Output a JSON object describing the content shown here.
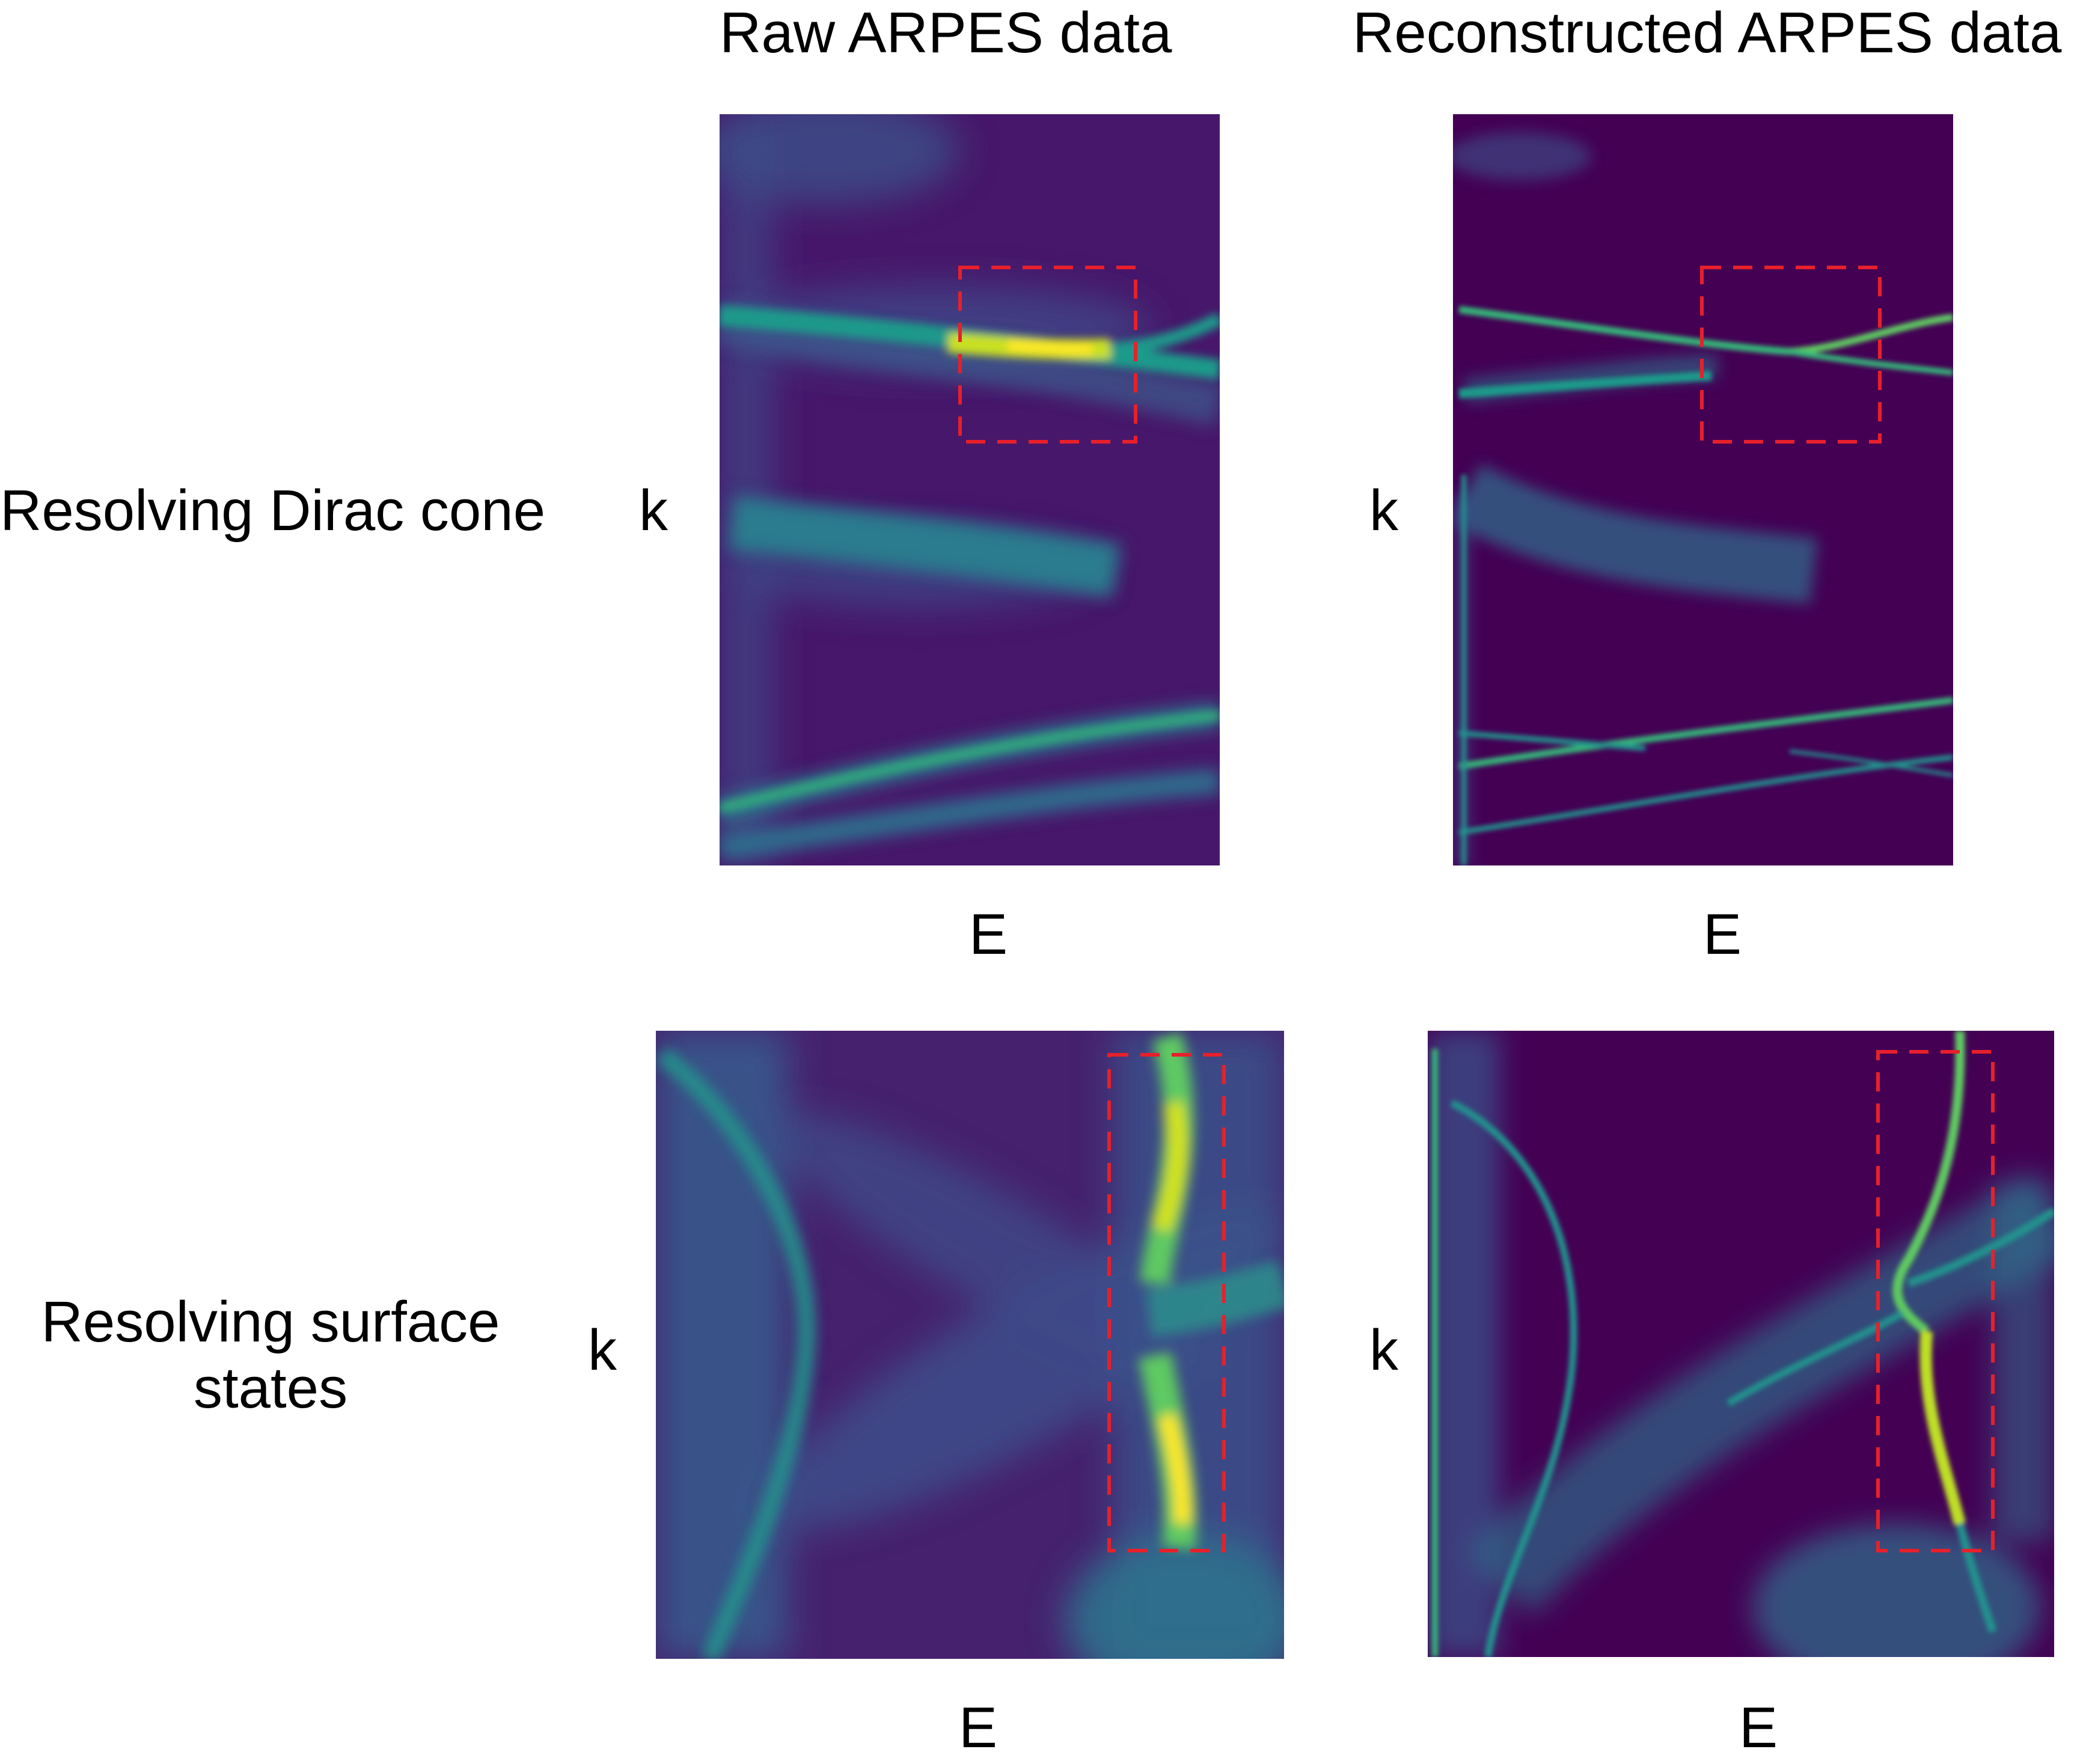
{
  "column_titles": {
    "raw": "Raw ARPES data",
    "reconstructed": "Reconstructed ARPES data"
  },
  "rows": [
    {
      "label_lines": [
        "Resolving Dirac cone"
      ],
      "y_axis": "k",
      "x_axis": "E"
    },
    {
      "label_lines": [
        "Resolving surface",
        "states"
      ],
      "y_axis": "k",
      "x_axis": "E"
    }
  ],
  "colors": {
    "viridis_dark": "#440154",
    "viridis_blue": "#3b528b",
    "viridis_teal": "#21918c",
    "viridis_green": "#5ec962",
    "viridis_yellow": "#fde725",
    "highlight_box": "#e8202a"
  }
}
